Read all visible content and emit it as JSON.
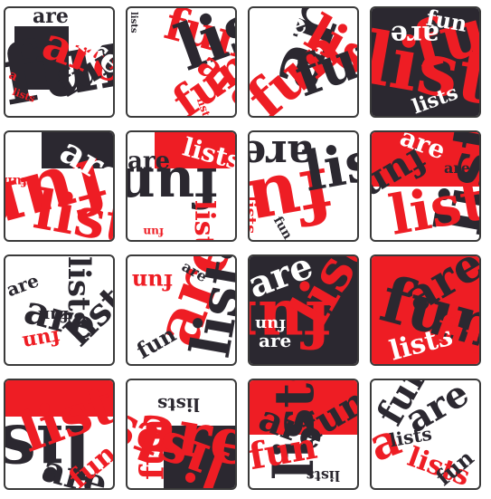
{
  "palette": {
    "red": "#ee1d24",
    "dark": "#2b2830",
    "white": "#ffffff",
    "border": "#3a3a3a"
  },
  "tiles": [
    {
      "id": 1,
      "words": [
        "are",
        "fun",
        "lists",
        "a"
      ]
    },
    {
      "id": 2,
      "words": [
        "lists",
        "fun",
        "are"
      ]
    },
    {
      "id": 3,
      "words": [
        "are",
        "fun",
        "lists"
      ]
    },
    {
      "id": 4,
      "words": [
        "are",
        "fun",
        "lists"
      ]
    },
    {
      "id": 5,
      "words": [
        "fun",
        "lists",
        "are"
      ]
    },
    {
      "id": 6,
      "words": [
        "are",
        "fun",
        "lists"
      ]
    },
    {
      "id": 7,
      "words": [
        "are",
        "fun",
        "lists"
      ]
    },
    {
      "id": 8,
      "words": [
        "are",
        "fun",
        "lists"
      ]
    },
    {
      "id": 9,
      "words": [
        "are",
        "lists",
        "fun"
      ]
    },
    {
      "id": 10,
      "words": [
        "fun",
        "are",
        "lists"
      ]
    },
    {
      "id": 11,
      "words": [
        "fun",
        "are",
        "lists"
      ]
    },
    {
      "id": 12,
      "words": [
        "are",
        "fun",
        "lists"
      ]
    },
    {
      "id": 13,
      "words": [
        "lists",
        "are",
        "fun"
      ]
    },
    {
      "id": 14,
      "words": [
        "are",
        "lists",
        "fun"
      ]
    },
    {
      "id": 15,
      "words": [
        "lists",
        "are",
        "fun"
      ]
    },
    {
      "id": 16,
      "words": [
        "lists",
        "are",
        "fun",
        "a"
      ]
    }
  ]
}
